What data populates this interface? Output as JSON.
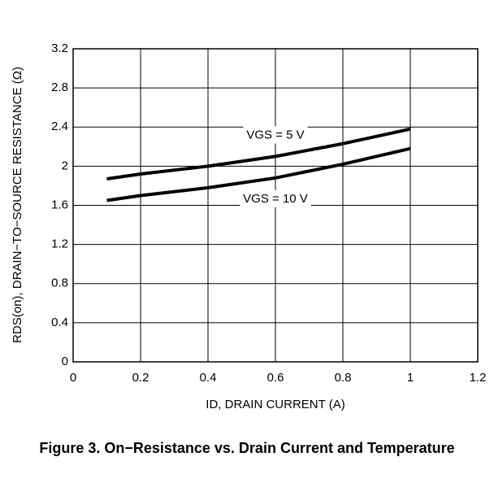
{
  "chart_data": {
    "type": "line",
    "title": "Figure 3. On−Resistance vs. Drain Current and Temperature",
    "x_label": "ID, DRAIN CURRENT (A)",
    "y_label": "RDS(on), DRAIN−TO−SOURCE RESISTANCE (Ω)",
    "x": [
      0.1,
      0.2,
      0.4,
      0.6,
      0.8,
      1.0
    ],
    "series": [
      {
        "name": "VGS = 5 V",
        "color": "#000000",
        "values": [
          1.87,
          1.92,
          2.0,
          2.1,
          2.23,
          2.38
        ]
      },
      {
        "name": "VGS = 10 V",
        "color": "#000000",
        "values": [
          1.65,
          1.7,
          1.78,
          1.88,
          2.02,
          2.18
        ]
      }
    ],
    "xlim": [
      0,
      1.2
    ],
    "xticks": [
      0,
      0.2,
      0.4,
      0.6,
      0.8,
      1.0,
      1.2
    ],
    "ylim": [
      0,
      3.2
    ],
    "yticks": [
      0,
      0.4,
      0.8,
      1.2,
      1.6,
      2.0,
      2.4,
      2.8,
      3.2
    ],
    "grid": true
  }
}
